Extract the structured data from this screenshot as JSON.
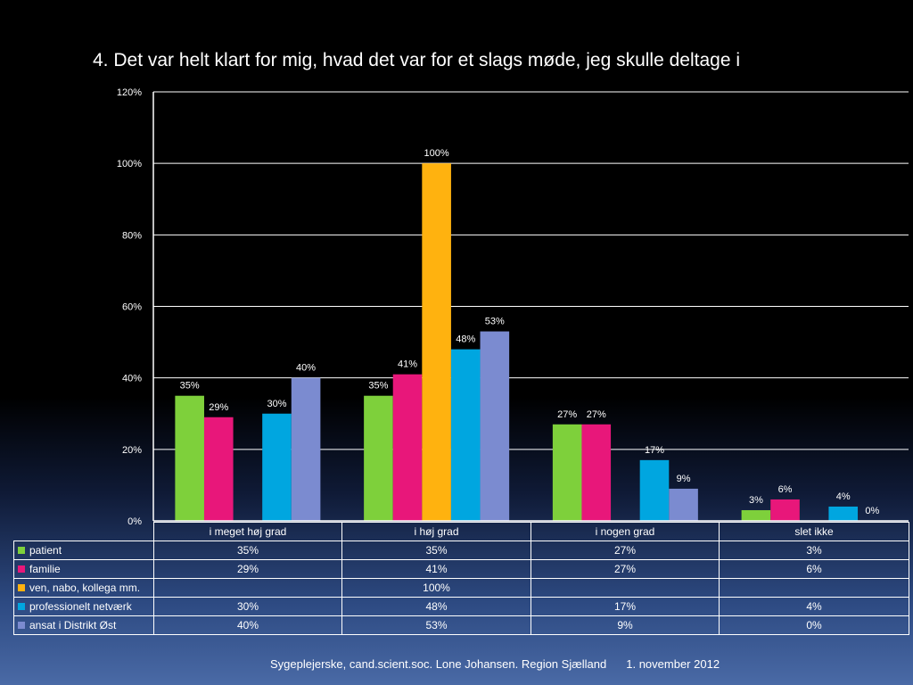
{
  "slide": {
    "title": "4. Det var helt klart for mig, hvad det var for et slags møde, jeg skulle deltage i",
    "footer_author": "Sygeplejerske, cand.scient.soc. Lone Johansen. Region Sjælland",
    "footer_date": "1. november 2012"
  },
  "chart_data": {
    "type": "bar",
    "title": "4. Det var helt klart for mig, hvad det var for et slags møde, jeg skulle deltage i",
    "categories": [
      "i meget høj grad",
      "i høj grad",
      "i nogen grad",
      "slet ikke"
    ],
    "ylim": [
      0,
      120
    ],
    "yticks": [
      0,
      20,
      40,
      60,
      80,
      100,
      120
    ],
    "ytick_labels": [
      "0%",
      "20%",
      "40%",
      "60%",
      "80%",
      "100%",
      "120%"
    ],
    "grid": true,
    "legend": "data-table",
    "series": [
      {
        "name": "patient",
        "color": "#7ed03b",
        "values": [
          35,
          35,
          27,
          3
        ],
        "labels": [
          "35%",
          "35%",
          "27%",
          "3%"
        ]
      },
      {
        "name": "familie",
        "color": "#e8177a",
        "values": [
          29,
          41,
          27,
          6
        ],
        "labels": [
          "29%",
          "41%",
          "27%",
          "6%"
        ]
      },
      {
        "name": "ven, nabo, kollega mm.",
        "color": "#ffb20f",
        "values": [
          null,
          100,
          null,
          null
        ],
        "labels": [
          "",
          "100%",
          "",
          ""
        ]
      },
      {
        "name": "professionelt netværk",
        "color": "#00a6e0",
        "values": [
          30,
          48,
          17,
          4
        ],
        "labels": [
          "30%",
          "48%",
          "17%",
          "4%"
        ]
      },
      {
        "name": "ansat i Distrikt Øst",
        "color": "#7b8bd0",
        "values": [
          40,
          53,
          9,
          0
        ],
        "labels": [
          "40%",
          "53%",
          "9%",
          "0%"
        ]
      }
    ]
  }
}
